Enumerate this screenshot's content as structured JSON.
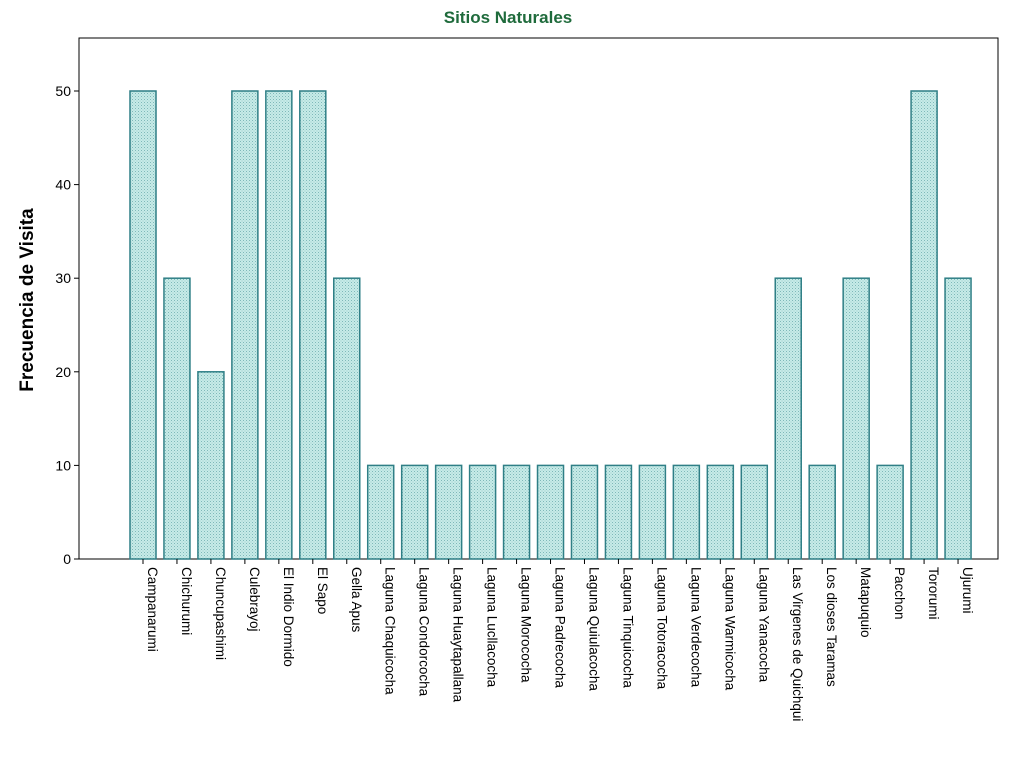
{
  "chart_data": {
    "type": "bar",
    "title": "Sitios Naturales",
    "xlabel": "",
    "ylabel": "Frecuencia de Visita",
    "ylim": [
      0,
      55
    ],
    "yticks": [
      0,
      10,
      20,
      30,
      40,
      50
    ],
    "grid": false,
    "colors": {
      "bar_fill": "#bfe7e4",
      "bar_stroke": "#2f7f86",
      "title": "#1f6b3c"
    },
    "categories": [
      "Campanarumi",
      "Chichurumi",
      "Chuncupashimi",
      "Culebrayoj",
      "El Indio Dormido",
      "El Sapo",
      "Gella Apus",
      "Laguna Chaquicocha",
      "Laguna Condorcocha",
      "Laguna Huaytapallana",
      "Laguna Lucllacocha",
      "Laguna Morococha",
      "Laguna Padrecocha",
      "Laguna Quiulacocha",
      "Laguna Tinquicocha",
      "Laguna Totoracocha",
      "Laguna Verdecocha",
      "Laguna Warmicocha",
      "Laguna Yanacocha",
      "Las Virgenes de Quichqui",
      "Los dioses Taramas",
      "Matapuquio",
      "Pacchon",
      "Tororumi",
      "Ujurumi"
    ],
    "values": [
      50,
      30,
      20,
      50,
      50,
      50,
      30,
      10,
      10,
      10,
      10,
      10,
      10,
      10,
      10,
      10,
      10,
      10,
      10,
      30,
      10,
      30,
      10,
      50,
      30
    ]
  }
}
